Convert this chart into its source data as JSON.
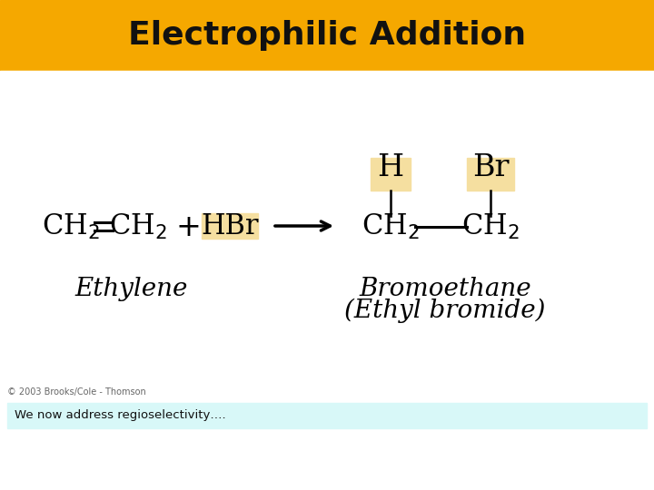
{
  "title": "Electrophilic Addition",
  "title_bg": "#F5A800",
  "title_color": "#111111",
  "title_fontsize": 26,
  "bg_color": "#FFFFFF",
  "bottom_text": "We now address regioselectivity….",
  "bottom_bg": "#D8F8F8",
  "copyright": "© 2003 Brooks/Cole - Thomson",
  "hbr_bg": "#F5DFA0",
  "h_bg": "#F5DFA0",
  "br_bg": "#F5DFA0",
  "chem_fontsize": 22,
  "label_fontsize": 20,
  "copyright_fontsize": 7
}
